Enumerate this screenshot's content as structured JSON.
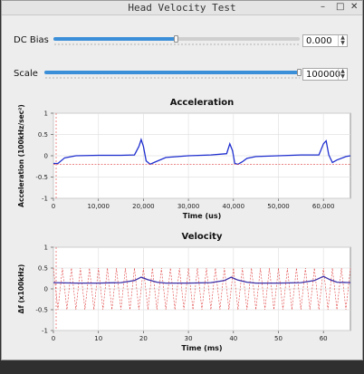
{
  "window": {
    "title": "Head Velocity Test",
    "controls": [
      "–",
      "□",
      "✕"
    ]
  },
  "dc_bias": {
    "label": "DC Bias",
    "value": "0.000",
    "slider_fraction": 0.5
  },
  "scale": {
    "label": "Scale",
    "value": "100000",
    "slider_fraction": 1.0
  },
  "chart_data": [
    {
      "type": "line",
      "title": "Acceleration",
      "xlabel": "Time (us)",
      "ylabel": "Acceleration (100kHz/sec²)",
      "ylim": [
        -1,
        1
      ],
      "xlim": [
        0,
        66000
      ],
      "xticks": [
        "0",
        "10,000",
        "20,000",
        "30,000",
        "40,000",
        "50,000",
        "60,000"
      ],
      "xtick_values": [
        0,
        10000,
        20000,
        30000,
        40000,
        50000,
        60000
      ],
      "yticks": [
        "1",
        "0.5",
        "0",
        "-0.5",
        "-1"
      ],
      "ytick_values": [
        1,
        0.5,
        0,
        -0.5,
        -1
      ],
      "grid": true,
      "series": [
        {
          "color": "#1f2fcf",
          "x": [
            0,
            1000,
            2500,
            5000,
            10000,
            15000,
            18000,
            19000,
            19500,
            20000,
            20600,
            21500,
            22500,
            25000,
            30000,
            35000,
            38500,
            39200,
            39800,
            40300,
            41000,
            42000,
            43000,
            45000,
            50000,
            55000,
            59000,
            60000,
            60600,
            61200,
            62000,
            63000,
            65000,
            66000
          ],
          "y": [
            -0.18,
            -0.18,
            -0.05,
            0.0,
            0.01,
            0.01,
            0.02,
            0.22,
            0.38,
            0.22,
            -0.12,
            -0.2,
            -0.15,
            -0.04,
            0.0,
            0.02,
            0.05,
            0.28,
            0.12,
            -0.18,
            -0.2,
            -0.14,
            -0.06,
            -0.02,
            0.0,
            0.02,
            0.02,
            0.28,
            0.35,
            0.02,
            -0.16,
            -0.1,
            -0.02,
            0.0
          ]
        },
        {
          "color": "#e04040",
          "dashed": true,
          "x": [
            0,
            66000
          ],
          "y": [
            -0.2,
            -0.2
          ]
        }
      ]
    },
    {
      "type": "line",
      "title": "Velocity",
      "xlabel": "Time (ms)",
      "ylabel": "Δf (x100kHz)",
      "ylim": [
        -1,
        1
      ],
      "xlim": [
        0,
        66
      ],
      "xticks": [
        "0",
        "10",
        "20",
        "30",
        "40",
        "50",
        "60"
      ],
      "xtick_values": [
        0,
        10,
        20,
        30,
        40,
        50,
        60
      ],
      "yticks": [
        "1",
        "0.5",
        "0",
        "-0.5",
        "-1"
      ],
      "ytick_values": [
        1,
        0.5,
        0,
        -0.5,
        -1
      ],
      "grid": true,
      "series": [
        {
          "color": "#e04040",
          "dashed": true,
          "oscillation": {
            "period": 2.0,
            "min": -0.5,
            "max": 0.5
          }
        },
        {
          "color": "#3a2fa8",
          "x": [
            0,
            5,
            10,
            15,
            18,
            19.5,
            21,
            23,
            25,
            30,
            35,
            38,
            39.5,
            41,
            43,
            45,
            50,
            55,
            58,
            60,
            61.5,
            63,
            66
          ],
          "y": [
            0.15,
            0.14,
            0.14,
            0.15,
            0.2,
            0.28,
            0.22,
            0.16,
            0.14,
            0.14,
            0.15,
            0.2,
            0.28,
            0.21,
            0.16,
            0.14,
            0.14,
            0.15,
            0.2,
            0.3,
            0.22,
            0.16,
            0.15
          ]
        }
      ]
    }
  ]
}
